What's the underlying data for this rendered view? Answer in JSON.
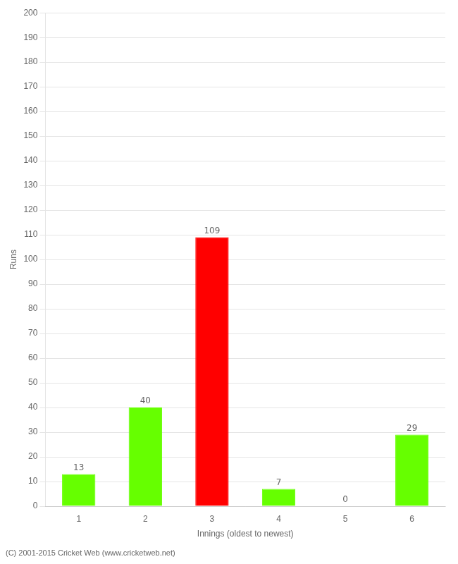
{
  "chart_data": {
    "type": "bar",
    "categories": [
      "1",
      "2",
      "3",
      "4",
      "5",
      "6"
    ],
    "values": [
      13,
      40,
      109,
      7,
      0,
      29
    ],
    "colors": [
      "#66ff00",
      "#66ff00",
      "#ff0000",
      "#66ff00",
      "#66ff00",
      "#66ff00"
    ],
    "xlabel": "Innings (oldest to newest)",
    "ylabel": "Runs",
    "ylim": [
      0,
      200
    ],
    "yticks": [
      0,
      10,
      20,
      30,
      40,
      50,
      60,
      70,
      80,
      90,
      100,
      110,
      120,
      130,
      140,
      150,
      160,
      170,
      180,
      190,
      200
    ],
    "grid": true,
    "data_labels": true,
    "annotations": [
      "(C) 2001-2015 Cricket Web (www.cricketweb.net)"
    ]
  }
}
